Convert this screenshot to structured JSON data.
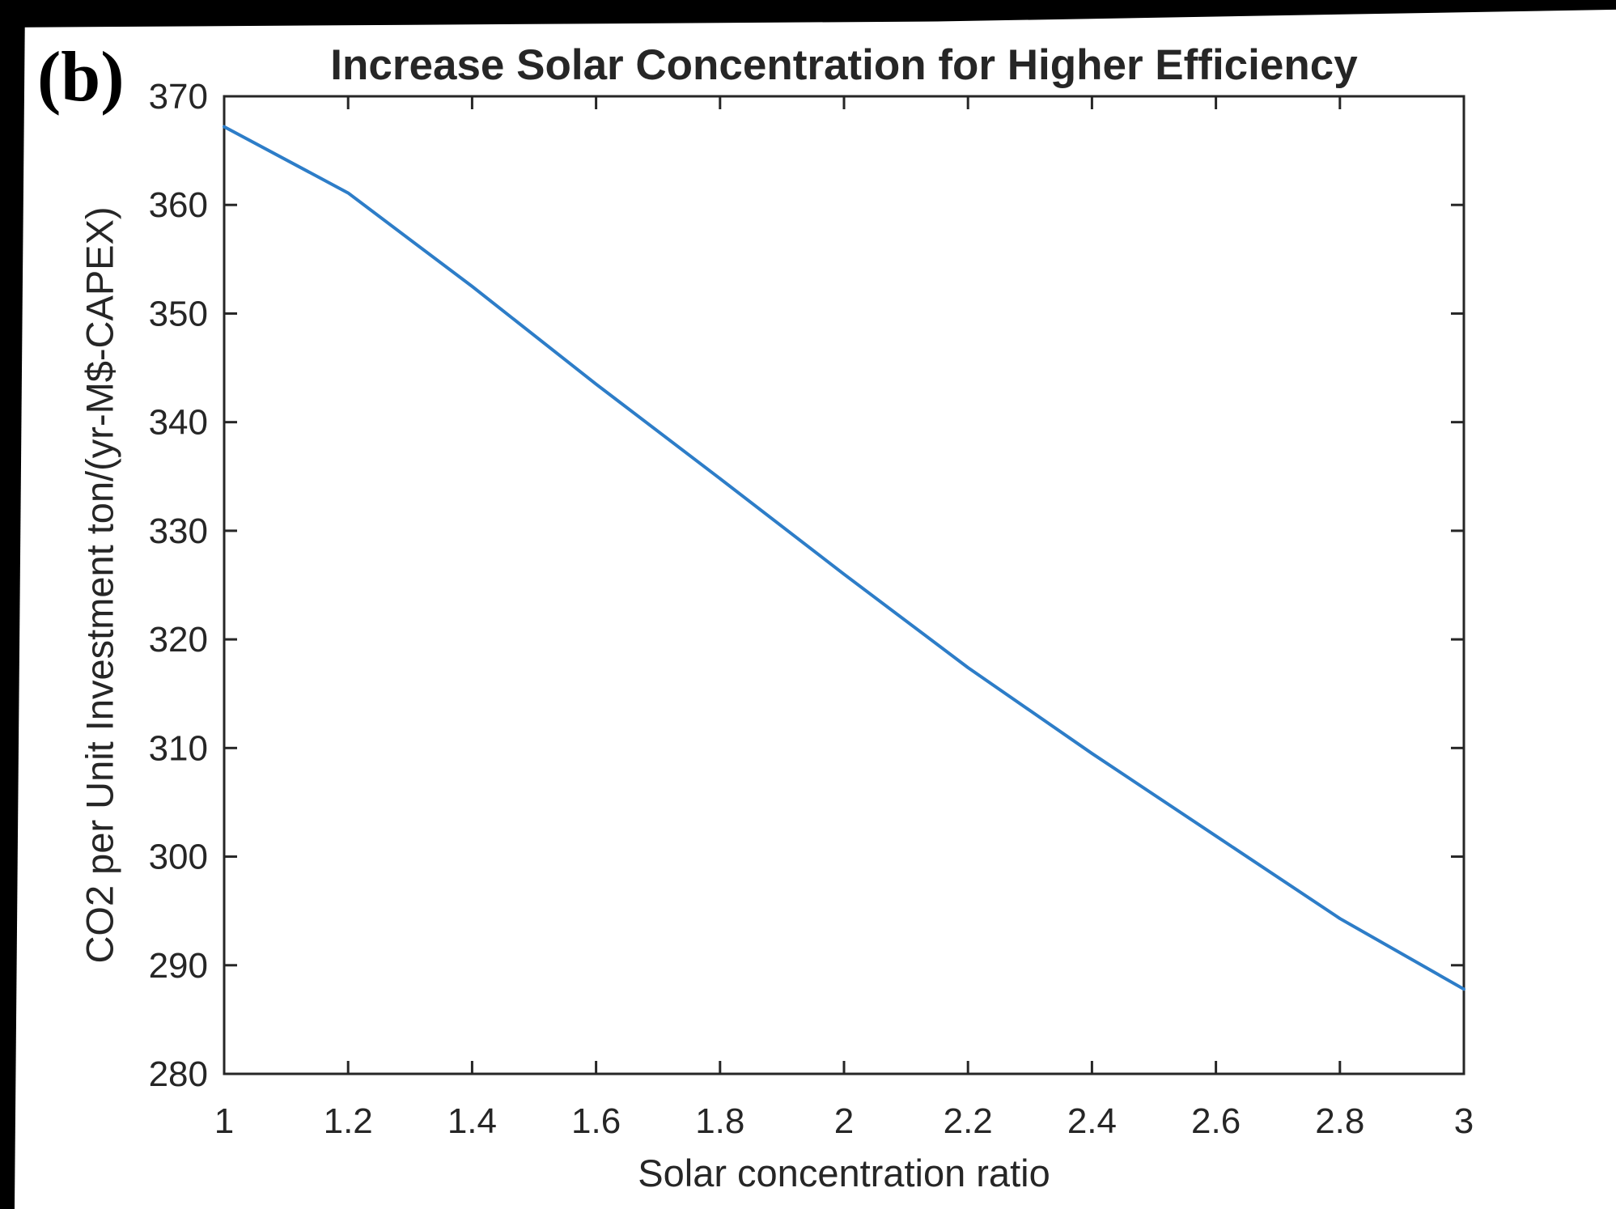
{
  "figure": {
    "panel_label": "(b)"
  },
  "chart_data": {
    "type": "line",
    "title": "Increase Solar Concentration for Higher Efficiency",
    "xlabel": "Solar concentration ratio",
    "ylabel": "CO2 per Unit Investment ton/(yr-M$-CAPEX)",
    "series": [
      {
        "name": "CO2 per unit investment vs solar concentration ratio",
        "x": [
          1.0,
          1.2,
          1.4,
          1.6,
          1.8,
          2.0,
          2.2,
          2.4,
          2.6,
          2.8,
          3.0
        ],
        "y": [
          367.2,
          361.1,
          352.5,
          343.5,
          334.8,
          326.0,
          317.4,
          309.5,
          301.9,
          294.3,
          287.8
        ]
      }
    ],
    "xlim": [
      1,
      3
    ],
    "ylim": [
      280,
      370
    ],
    "x_tick_values": [
      1,
      1.2,
      1.4,
      1.6,
      1.8,
      2,
      2.2,
      2.4,
      2.6,
      2.8,
      3
    ],
    "x_tick_labels": [
      "1",
      "1.2",
      "1.4",
      "1.6",
      "1.8",
      "2",
      "2.2",
      "2.4",
      "2.6",
      "2.8",
      "3"
    ],
    "y_tick_values": [
      280,
      290,
      300,
      310,
      320,
      330,
      340,
      350,
      360,
      370
    ],
    "y_tick_labels": [
      "280",
      "290",
      "300",
      "310",
      "320",
      "330",
      "340",
      "350",
      "360",
      "370"
    ],
    "grid": false,
    "legend": null,
    "line_color": "#2D7DC8",
    "axis_color": "#262626"
  }
}
